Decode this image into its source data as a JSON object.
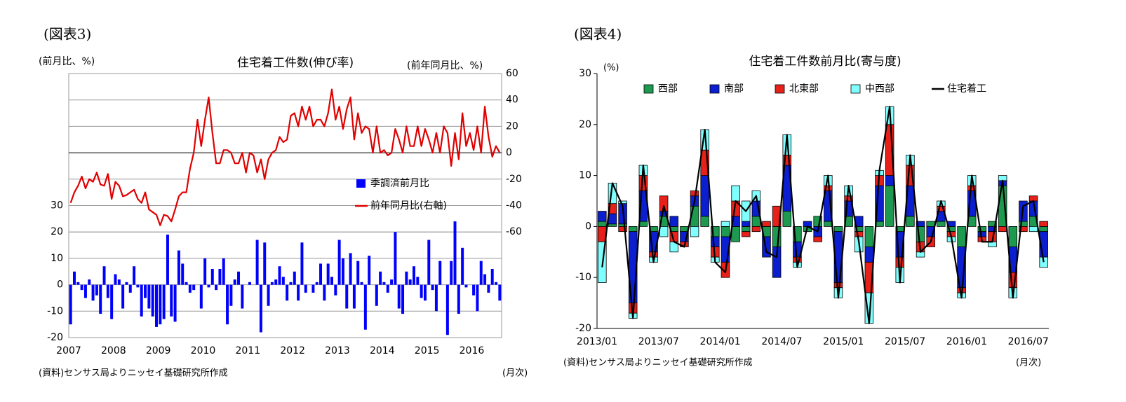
{
  "chart_data": [
    {
      "type": "bar",
      "figure_label": "(図表3)",
      "title": "住宅着工件数(伸び率)",
      "y_label": "(前月比、%)",
      "y2_label": "(前年同月比、%)",
      "source": "(資料)センサス局よりニッセイ基礎研究所作成",
      "x_unit": "(月次)",
      "categories": [
        "2007",
        null,
        null,
        null,
        null,
        null,
        null,
        null,
        null,
        null,
        null,
        null,
        "2008",
        null,
        null,
        null,
        null,
        null,
        null,
        null,
        null,
        null,
        null,
        null,
        "2009",
        null,
        null,
        null,
        null,
        null,
        null,
        null,
        null,
        null,
        null,
        null,
        "2010",
        null,
        null,
        null,
        null,
        null,
        null,
        null,
        null,
        null,
        null,
        null,
        "2011",
        null,
        null,
        null,
        null,
        null,
        null,
        null,
        null,
        null,
        null,
        null,
        "2012",
        null,
        null,
        null,
        null,
        null,
        null,
        null,
        null,
        null,
        null,
        null,
        "2013",
        null,
        null,
        null,
        null,
        null,
        null,
        null,
        null,
        null,
        null,
        null,
        "2014",
        null,
        null,
        null,
        null,
        null,
        null,
        null,
        null,
        null,
        null,
        null,
        "2015",
        null,
        null,
        null,
        null,
        null,
        null,
        null,
        null,
        null,
        null,
        null,
        "2016",
        null,
        null,
        null,
        null,
        null,
        null,
        null
      ],
      "series": [
        {
          "name": "季調済前月比",
          "type": "bar",
          "color": "#0000ff",
          "values": [
            -15,
            5,
            1,
            -2,
            -5,
            2,
            -6,
            -4,
            -11,
            7,
            -5,
            -13,
            4,
            2,
            -9,
            1,
            -3,
            7,
            -1,
            -12,
            -5,
            -9,
            -12,
            -16,
            -15,
            -13,
            19,
            -12,
            -14,
            13,
            8,
            1,
            -3,
            -2,
            0,
            -9,
            10,
            -1,
            6,
            -2,
            6,
            10,
            -15,
            -8,
            2,
            5,
            -9,
            0,
            1,
            0,
            17,
            -18,
            16,
            -8,
            1,
            2,
            7,
            3,
            -6,
            1,
            5,
            -6,
            16,
            -3,
            0,
            -3,
            1,
            8,
            -6,
            8,
            3,
            -4,
            17,
            10,
            -9,
            12,
            -9,
            9,
            1,
            -17,
            11,
            0,
            -8,
            5,
            1,
            -3,
            2,
            20,
            -9,
            -11,
            5,
            2,
            7,
            3,
            -5,
            -6,
            17,
            -2,
            -10,
            9,
            0,
            -19,
            9,
            24,
            -11,
            14,
            -1,
            0,
            -4,
            -10,
            9,
            4,
            -3,
            6,
            1,
            -6
          ]
        },
        {
          "name": "前年同月比(右軸)",
          "type": "line",
          "axis": "y2",
          "color": "#e00000",
          "values": [
            -38,
            -30,
            -25,
            -18,
            -27,
            -20,
            -22,
            -15,
            -24,
            -25,
            -16,
            -35,
            -22,
            -25,
            -33,
            -32,
            -30,
            -28,
            -35,
            -38,
            -30,
            -43,
            -45,
            -47,
            -55,
            -47,
            -48,
            -52,
            -43,
            -33,
            -30,
            -30,
            -12,
            0,
            25,
            5,
            25,
            42,
            15,
            -8,
            -8,
            2,
            2,
            0,
            -8,
            -8,
            0,
            -15,
            0,
            -2,
            -15,
            -5,
            -20,
            -5,
            0,
            2,
            12,
            8,
            10,
            28,
            30,
            20,
            35,
            25,
            35,
            20,
            25,
            25,
            20,
            30,
            48,
            25,
            35,
            18,
            33,
            42,
            10,
            30,
            15,
            20,
            18,
            0,
            20,
            0,
            2,
            -2,
            0,
            18,
            10,
            0,
            20,
            5,
            5,
            20,
            5,
            18,
            10,
            0,
            15,
            0,
            20,
            15,
            -10,
            15,
            -5,
            30,
            5,
            15,
            2,
            20,
            0,
            35,
            12,
            -3,
            5,
            0
          ]
        }
      ],
      "ylim": [
        -20,
        80
      ],
      "yticks": [
        -20,
        -10,
        0,
        10,
        20,
        30
      ],
      "y2lim": [
        -140,
        60
      ],
      "y2ticks": [
        -60,
        -40,
        -20,
        0,
        20,
        40,
        60
      ],
      "grid": true,
      "legend": "right"
    },
    {
      "type": "stackedbar",
      "figure_label": "(図表4)",
      "title": "住宅着工件数前月比(寄与度)",
      "y_label": "(%)",
      "source": "(資料)センサス局よりニッセイ基礎研究所作成",
      "x_unit": "(月次)",
      "categories": [
        "2013/01",
        null,
        null,
        null,
        null,
        null,
        "2013/07",
        null,
        null,
        null,
        null,
        null,
        "2014/01",
        null,
        null,
        null,
        null,
        null,
        "2014/07",
        null,
        null,
        null,
        null,
        null,
        "2015/01",
        null,
        null,
        null,
        null,
        null,
        "2015/07",
        null,
        null,
        null,
        null,
        null,
        "2016/01",
        null,
        null,
        null,
        null,
        null,
        "2016/07",
        null
      ],
      "series": [
        {
          "name": "西部",
          "type": "bar",
          "color": "#1e9a50",
          "values": [
            1,
            0.5,
            0.5,
            -1,
            1,
            -1,
            2,
            -1,
            -1,
            4,
            2,
            -2,
            -2,
            -3,
            -1,
            2,
            -2,
            -4,
            3,
            -3,
            -1,
            2,
            1,
            -1,
            2,
            -1,
            -4,
            1,
            8,
            -1,
            2,
            -3,
            1,
            1,
            -1,
            -4,
            2,
            -1,
            1,
            8,
            -4,
            1,
            2,
            -1
          ]
        },
        {
          "name": "南部",
          "type": "bar",
          "color": "#0b1fd0",
          "values": [
            2,
            2,
            4,
            -14,
            6,
            -4,
            1,
            2,
            -2,
            2,
            8,
            -2,
            -5,
            2,
            1,
            3,
            -4,
            -6,
            9,
            -3,
            1,
            -2,
            6,
            -10,
            3,
            2,
            -3,
            7,
            2,
            -5,
            6,
            1,
            -2,
            2,
            1,
            -8,
            5,
            -1,
            -1,
            1,
            -5,
            4,
            3,
            -5
          ]
        },
        {
          "name": "北東部",
          "type": "bar",
          "color": "#e8201a",
          "values": [
            -3,
            2,
            -1,
            -2,
            3,
            -1,
            3,
            -2,
            -1,
            1,
            5,
            -2,
            -3,
            3,
            -1,
            -1,
            1,
            4,
            2,
            -1,
            0,
            -1,
            1,
            -1,
            1,
            -1,
            -6,
            2,
            10,
            -2,
            4,
            -2,
            -2,
            1,
            -1,
            -1,
            1,
            -1,
            -2,
            -1,
            -3,
            -1,
            1,
            1
          ]
        },
        {
          "name": "中西部",
          "type": "bar",
          "color": "#80ffff",
          "values": [
            -8,
            4,
            0.5,
            -1,
            2,
            -1,
            -2,
            -2,
            0,
            -2,
            4,
            -1,
            1,
            3,
            4,
            2,
            0,
            0,
            4,
            -1,
            0,
            0,
            2,
            -2,
            2,
            -3,
            -6,
            1,
            3.5,
            -3,
            2,
            -1,
            0,
            1,
            -1,
            -1,
            2,
            0,
            -1,
            1,
            -2,
            0,
            -1,
            -2
          ]
        },
        {
          "name": "住宅着工",
          "type": "line",
          "color": "#000000",
          "values": [
            -8,
            8.5,
            4,
            -18,
            12,
            -7,
            4,
            -3,
            -4,
            5,
            19,
            -7,
            -9,
            5,
            3,
            6,
            -5,
            -6,
            18,
            -8,
            0,
            -1,
            10,
            -14,
            8,
            -3,
            -19,
            11,
            23.5,
            -11,
            14,
            -5,
            -3,
            5,
            -2,
            -14,
            10,
            -3,
            -3,
            9,
            -14,
            4,
            5,
            -7
          ]
        }
      ],
      "ylim": [
        -20,
        30
      ],
      "yticks": [
        -20,
        -10,
        0,
        10,
        20,
        30
      ],
      "grid": false,
      "legend": "top"
    }
  ]
}
